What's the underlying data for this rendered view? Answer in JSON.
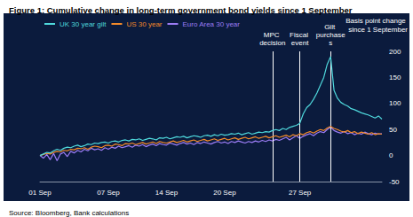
{
  "chart_data": {
    "type": "line",
    "title": "Figure 1: Cumulative change in long-term government bond yields since 1 September",
    "y_label": "Basis point change since 1 September",
    "source": "Source: Bloomberg, Bank calculations",
    "categories": [
      "01 Sep",
      null,
      null,
      null,
      null,
      null,
      null,
      null,
      null,
      null,
      null,
      null,
      null,
      null,
      null,
      null,
      null,
      null,
      null,
      null,
      "07 Sep",
      null,
      null,
      null,
      null,
      null,
      null,
      null,
      null,
      null,
      null,
      null,
      null,
      null,
      null,
      null,
      null,
      "14 Sep",
      null,
      null,
      null,
      null,
      null,
      null,
      null,
      null,
      null,
      null,
      null,
      null,
      null,
      null,
      null,
      null,
      "20 Sep",
      null,
      null,
      null,
      null,
      null,
      null,
      null,
      null,
      null,
      null,
      null,
      null,
      null,
      null,
      null,
      null,
      null,
      null,
      null,
      null,
      null,
      "27 Sep",
      null,
      null,
      null,
      null,
      null,
      null,
      null,
      null,
      null,
      null,
      null,
      null,
      null,
      null,
      null,
      null,
      null,
      null,
      null,
      null,
      null,
      null,
      null,
      null
    ],
    "series": [
      {
        "name": "UK 30 year gilt",
        "color": "#4fd8dc",
        "values": [
          0,
          3,
          6,
          5,
          9,
          12,
          10,
          14,
          16,
          15,
          18,
          20,
          17,
          19,
          22,
          21,
          24,
          23,
          25,
          26,
          24,
          27,
          28,
          26,
          29,
          30,
          28,
          31,
          30,
          32,
          29,
          31,
          33,
          32,
          30,
          34,
          33,
          35,
          32,
          34,
          36,
          35,
          37,
          34,
          36,
          38,
          37,
          35,
          38,
          39,
          37,
          40,
          38,
          41,
          39,
          40,
          42,
          41,
          43,
          40,
          42,
          44,
          41,
          43,
          45,
          44,
          46,
          45,
          48,
          50,
          48,
          52,
          50,
          54,
          56,
          58,
          62,
          80,
          92,
          98,
          108,
          120,
          135,
          150,
          175,
          190,
          125,
          110,
          102,
          98,
          95,
          90,
          88,
          85,
          82,
          80,
          78,
          75,
          72,
          76,
          70
        ]
      },
      {
        "name": "US 30 year",
        "color": "#f28a2a",
        "values": [
          0,
          2,
          4,
          3,
          6,
          8,
          7,
          10,
          9,
          12,
          11,
          14,
          13,
          15,
          12,
          16,
          18,
          17,
          15,
          19,
          20,
          18,
          22,
          21,
          19,
          23,
          22,
          24,
          21,
          23,
          25,
          22,
          24,
          26,
          23,
          27,
          25,
          24,
          26,
          28,
          25,
          27,
          29,
          26,
          28,
          30,
          27,
          29,
          31,
          28,
          30,
          32,
          29,
          31,
          33,
          30,
          32,
          34,
          31,
          33,
          35,
          32,
          34,
          36,
          33,
          35,
          37,
          34,
          36,
          38,
          35,
          37,
          39,
          36,
          40,
          38,
          42,
          40,
          44,
          46,
          43,
          47,
          50,
          48,
          53,
          56,
          52,
          50,
          47,
          45,
          48,
          44,
          46,
          42,
          45,
          43,
          41,
          44,
          40,
          42,
          41
        ]
      },
      {
        "name": "Euro Area 30 year",
        "color": "#9b7cf4",
        "values": [
          0,
          -5,
          2,
          -8,
          4,
          -10,
          3,
          6,
          -2,
          8,
          5,
          10,
          7,
          12,
          9,
          14,
          11,
          13,
          10,
          15,
          12,
          16,
          14,
          18,
          15,
          17,
          19,
          16,
          20,
          18,
          21,
          17,
          20,
          22,
          19,
          23,
          21,
          20,
          24,
          22,
          20,
          23,
          25,
          22,
          24,
          21,
          25,
          23,
          26,
          24,
          22,
          25,
          27,
          24,
          26,
          23,
          27,
          25,
          28,
          26,
          24,
          27,
          25,
          28,
          26,
          29,
          27,
          30,
          28,
          31,
          29,
          32,
          35,
          30,
          34,
          38,
          33,
          37,
          40,
          42,
          38,
          43,
          46,
          44,
          50,
          55,
          48,
          45,
          43,
          46,
          42,
          44,
          40,
          43,
          41,
          45,
          42,
          40,
          43,
          41,
          42
        ]
      }
    ],
    "annotations": [
      {
        "text": "MPC decision",
        "x": 68
      },
      {
        "text": "Fiscal event",
        "x": 76
      },
      {
        "text": "Gilt purchases",
        "x": 85
      }
    ],
    "ylim": [
      -50,
      200
    ],
    "yticks": [
      -50,
      0,
      50,
      100,
      150,
      200
    ],
    "grid": false,
    "legend": "upper left",
    "marker": "none",
    "line_style": "solid"
  }
}
